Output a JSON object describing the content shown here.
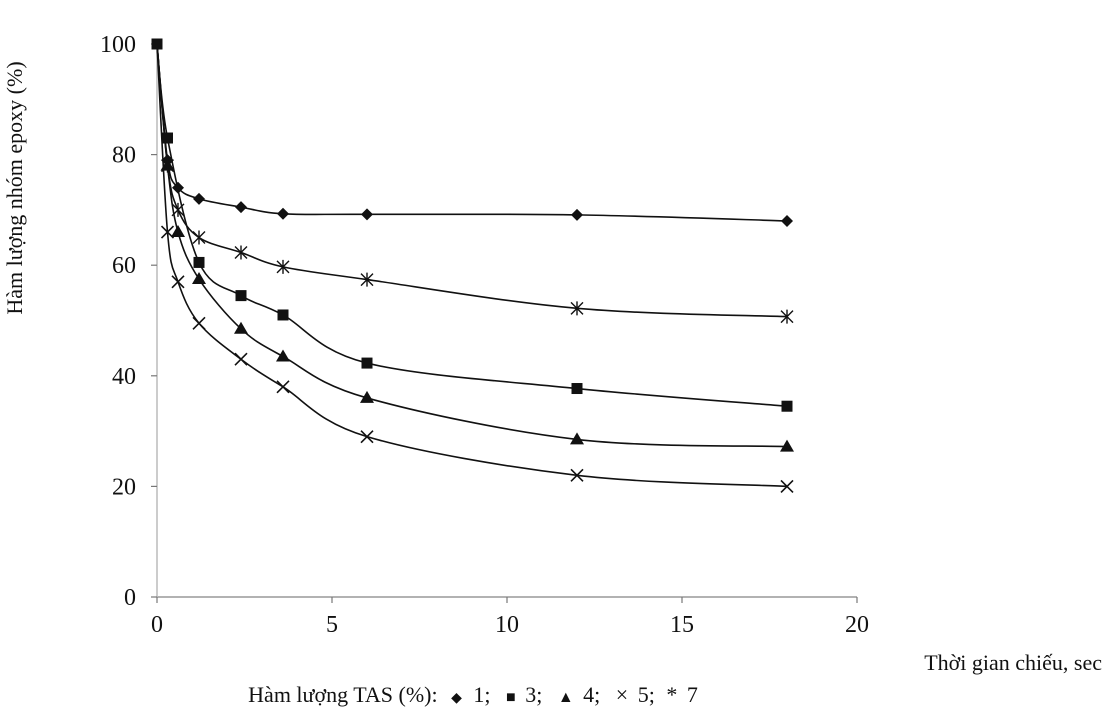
{
  "chart_data": {
    "type": "line",
    "title": "",
    "xlabel": "Thời gian chiếu, sec",
    "ylabel": "Hàm lượng nhóm epoxy (%)",
    "xlim": [
      0,
      20
    ],
    "ylim": [
      0,
      100
    ],
    "x_ticks": [
      "0",
      "5",
      "10",
      "15",
      "20"
    ],
    "y_ticks": [
      "0",
      "20",
      "40",
      "60",
      "80",
      "100"
    ],
    "grid": false,
    "legend": {
      "prefix": "Hàm lượng TAS (%):",
      "entries": [
        {
          "marker": "◆",
          "label": "1;"
        },
        {
          "marker": "■",
          "label": "3;"
        },
        {
          "marker": "▲",
          "label": "4;"
        },
        {
          "marker": "×",
          "label": "5;"
        },
        {
          "marker": "*",
          "label": "7"
        }
      ],
      "placement": "bottom"
    },
    "series": [
      {
        "name": "1",
        "marker": "diamond",
        "points": [
          [
            0,
            100
          ],
          [
            0.3,
            79
          ],
          [
            0.6,
            74
          ],
          [
            1.2,
            72
          ],
          [
            2.4,
            70.5
          ],
          [
            3.6,
            69.3
          ],
          [
            6,
            69.2
          ],
          [
            12,
            69.1
          ],
          [
            18,
            68
          ]
        ]
      },
      {
        "name": "3",
        "marker": "square",
        "points": [
          [
            0,
            100
          ],
          [
            0.3,
            83
          ],
          [
            1.2,
            60.5
          ],
          [
            2.4,
            54.5
          ],
          [
            3.6,
            51
          ],
          [
            6,
            42.3
          ],
          [
            12,
            37.7
          ],
          [
            18,
            34.5
          ]
        ]
      },
      {
        "name": "4",
        "marker": "triangle",
        "points": [
          [
            0,
            100
          ],
          [
            0.3,
            78
          ],
          [
            0.6,
            66
          ],
          [
            1.2,
            57.5
          ],
          [
            2.4,
            48.5
          ],
          [
            3.6,
            43.5
          ],
          [
            6,
            36
          ],
          [
            12,
            28.5
          ],
          [
            18,
            27.2
          ]
        ]
      },
      {
        "name": "5",
        "marker": "x",
        "points": [
          [
            0,
            100
          ],
          [
            0.3,
            66
          ],
          [
            0.6,
            57
          ],
          [
            1.2,
            49.5
          ],
          [
            2.4,
            43
          ],
          [
            3.6,
            38
          ],
          [
            6,
            29
          ],
          [
            12,
            22
          ],
          [
            18,
            20
          ]
        ]
      },
      {
        "name": "7",
        "marker": "star",
        "points": [
          [
            0,
            100
          ],
          [
            0.3,
            78
          ],
          [
            0.6,
            70
          ],
          [
            1.2,
            65
          ],
          [
            2.4,
            62.3
          ],
          [
            3.6,
            59.7
          ],
          [
            6,
            57.4
          ],
          [
            12,
            52.2
          ],
          [
            18,
            50.7
          ]
        ]
      }
    ]
  }
}
